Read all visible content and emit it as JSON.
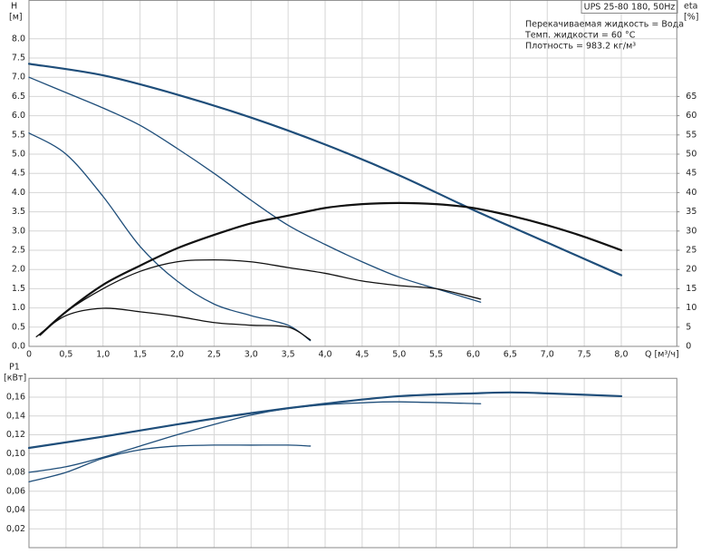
{
  "chart_data": [
    {
      "type": "line",
      "title": "UPS 25-80 180, 50Hz",
      "annotations": [
        "Перекачиваемая жидкость = Вода",
        "Темп. жидкости = 60 °C",
        "Плотность = 983.2 кг/м³"
      ],
      "ylabel": "H",
      "ylabel_unit": "[м]",
      "y2label": "eta",
      "y2label_unit": "[%]",
      "xlabel": "Q [м³/ч]",
      "grid": true,
      "xlim": [
        0,
        8.75
      ],
      "ylim": [
        0,
        9
      ],
      "y2lim": [
        0,
        90
      ],
      "xticks": [
        0,
        {
          "value": 0.5,
          "label": "0,5"
        },
        {
          "value": 1,
          "label": "1,0"
        },
        {
          "value": 1.5,
          "label": "1,5"
        },
        {
          "value": 2,
          "label": "2,0"
        },
        {
          "value": 2.5,
          "label": "2,5"
        },
        {
          "value": 3,
          "label": "3,0"
        },
        {
          "value": 3.5,
          "label": "3,5"
        },
        {
          "value": 4,
          "label": "4,0"
        },
        {
          "value": 4.5,
          "label": "4,5"
        },
        {
          "value": 5,
          "label": "5,0"
        },
        {
          "value": 5.5,
          "label": "5,5"
        },
        {
          "value": 6,
          "label": "6,0"
        },
        {
          "value": 6.5,
          "label": "6,5"
        },
        {
          "value": 7,
          "label": "7,0"
        },
        {
          "value": 7.5,
          "label": "7,5"
        },
        {
          "value": 8,
          "label": "8,0"
        }
      ],
      "yticks": [
        {
          "value": 0,
          "label": "0.0"
        },
        {
          "value": 0.5,
          "label": "0.5"
        },
        {
          "value": 1,
          "label": "1.0"
        },
        {
          "value": 1.5,
          "label": "1.5"
        },
        {
          "value": 2,
          "label": "2.0"
        },
        {
          "value": 2.5,
          "label": "2.5"
        },
        {
          "value": 3,
          "label": "3.0"
        },
        {
          "value": 3.5,
          "label": "3.5"
        },
        {
          "value": 4,
          "label": "4.0"
        },
        {
          "value": 4.5,
          "label": "4.5"
        },
        {
          "value": 5,
          "label": "5.0"
        },
        {
          "value": 5.5,
          "label": "5.5"
        },
        {
          "value": 6,
          "label": "6.0"
        },
        {
          "value": 6.5,
          "label": "6.5"
        },
        {
          "value": 7,
          "label": "7.0"
        },
        {
          "value": 7.5,
          "label": "7.5"
        },
        {
          "value": 8,
          "label": "8.0"
        }
      ],
      "y2ticks": [
        0,
        5,
        10,
        15,
        20,
        25,
        30,
        35,
        40,
        45,
        50,
        55,
        60,
        65
      ],
      "series": [
        {
          "color": "#1f4e7a",
          "width": 2.2,
          "x": [
            0,
            1,
            2,
            3,
            4,
            5,
            6,
            7,
            8
          ],
          "values": [
            7.35,
            7.05,
            6.55,
            5.95,
            5.25,
            4.45,
            3.55,
            2.7,
            1.85
          ]
        },
        {
          "color": "#1f4e7a",
          "width": 1.3,
          "x": [
            0,
            0.5,
            1,
            1.5,
            2,
            2.5,
            3,
            3.5,
            4,
            4.5,
            5,
            5.5,
            6.1
          ],
          "values": [
            7.0,
            6.6,
            6.2,
            5.75,
            5.15,
            4.5,
            3.8,
            3.15,
            2.65,
            2.2,
            1.8,
            1.5,
            1.15
          ]
        },
        {
          "color": "#1f4e7a",
          "width": 1.3,
          "x": [
            0,
            0.5,
            1,
            1.5,
            2,
            2.5,
            3,
            3.5,
            3.8
          ],
          "values": [
            5.55,
            5.0,
            3.9,
            2.6,
            1.7,
            1.1,
            0.8,
            0.55,
            0.15
          ]
        },
        {
          "color": "#111111",
          "width": 2.2,
          "axis": "y2",
          "x": [
            0.15,
            0.5,
            1,
            1.5,
            2,
            2.5,
            3,
            3.5,
            4,
            4.5,
            5,
            5.5,
            6,
            6.5,
            7,
            7.5,
            8
          ],
          "values": [
            3,
            9,
            16,
            21,
            25.5,
            29,
            32,
            34,
            36,
            37,
            37.3,
            37,
            36,
            34,
            31.5,
            28.5,
            25
          ]
        },
        {
          "color": "#111111",
          "width": 1.3,
          "axis": "y2",
          "x": [
            0.2,
            0.5,
            1,
            1.5,
            2,
            2.5,
            3,
            3.5,
            4,
            4.5,
            5,
            5.5,
            6.1
          ],
          "values": [
            4,
            9,
            15,
            19.5,
            22,
            22.5,
            22,
            20.5,
            19,
            17,
            15.8,
            15,
            12.3
          ]
        },
        {
          "color": "#111111",
          "width": 1.3,
          "axis": "y2",
          "x": [
            0.1,
            0.5,
            1,
            1.5,
            2,
            2.5,
            3,
            3.5,
            3.8
          ],
          "values": [
            2.5,
            8,
            9.9,
            9,
            7.8,
            6.2,
            5.5,
            5,
            1.7
          ]
        }
      ]
    },
    {
      "type": "line",
      "ylabel": "P1",
      "ylabel_unit": "[кВт]",
      "grid": true,
      "xlim": [
        0,
        8.75
      ],
      "ylim": [
        0,
        0.18
      ],
      "xticks": [
        0,
        0.5,
        1,
        1.5,
        2,
        2.5,
        3,
        3.5,
        4,
        4.5,
        5,
        5.5,
        6,
        6.5,
        7,
        7.5,
        8
      ],
      "yticks": [
        {
          "value": 0.02,
          "label": "0,02"
        },
        {
          "value": 0.04,
          "label": "0,04"
        },
        {
          "value": 0.06,
          "label": "0,06"
        },
        {
          "value": 0.08,
          "label": "0,08"
        },
        {
          "value": 0.1,
          "label": "0,10"
        },
        {
          "value": 0.12,
          "label": "0,12"
        },
        {
          "value": 0.14,
          "label": "0,14"
        },
        {
          "value": 0.16,
          "label": "0,16"
        }
      ],
      "series": [
        {
          "color": "#1f4e7a",
          "width": 2.2,
          "x": [
            0,
            1,
            2,
            3,
            4,
            5,
            6,
            6.5,
            7,
            8
          ],
          "values": [
            0.106,
            0.118,
            0.131,
            0.143,
            0.153,
            0.161,
            0.164,
            0.165,
            0.164,
            0.161
          ]
        },
        {
          "color": "#1f4e7a",
          "width": 1.3,
          "x": [
            0,
            0.5,
            1,
            1.5,
            2,
            2.5,
            3,
            3.5,
            4,
            4.5,
            5,
            6.1
          ],
          "values": [
            0.08,
            0.086,
            0.096,
            0.108,
            0.12,
            0.131,
            0.141,
            0.148,
            0.152,
            0.154,
            0.155,
            0.153
          ]
        },
        {
          "color": "#1f4e7a",
          "width": 1.3,
          "x": [
            0,
            0.5,
            1,
            1.5,
            2,
            2.5,
            3,
            3.5,
            3.8
          ],
          "values": [
            0.07,
            0.08,
            0.095,
            0.104,
            0.108,
            0.109,
            0.109,
            0.109,
            0.108
          ]
        }
      ]
    }
  ]
}
